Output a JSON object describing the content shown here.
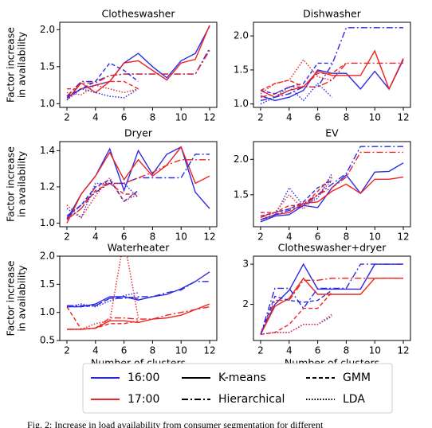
{
  "chart_data": [
    {
      "type": "line",
      "title": "Clotheswasher",
      "ylabel": [
        "Factor increase",
        "in availability"
      ],
      "x": [
        2,
        3,
        4,
        5,
        6,
        7,
        8,
        9,
        10,
        11,
        12
      ],
      "xlim": [
        1.5,
        12.5
      ],
      "xticks": [
        2,
        4,
        6,
        8,
        10,
        12
      ],
      "ylim": [
        0.95,
        2.1
      ],
      "yticks": [
        {
          "value": 1,
          "label": "1.0"
        },
        1.5,
        {
          "value": 2,
          "label": "2.0"
        }
      ],
      "series": [
        {
          "color": "#2a2ae6",
          "dash": "solid",
          "values": [
            1.08,
            1.2,
            1.25,
            1.3,
            1.55,
            1.68,
            1.5,
            1.35,
            1.58,
            1.68,
            2.05
          ]
        },
        {
          "color": "#ee2222",
          "dash": "solid",
          "values": [
            1.05,
            1.28,
            1.15,
            1.3,
            1.55,
            1.58,
            1.45,
            1.32,
            1.55,
            1.6,
            2.06
          ]
        },
        {
          "color": "#2a2ae6",
          "dash": "dashdot",
          "values": [
            1.1,
            1.3,
            1.3,
            1.38,
            1.4,
            1.4,
            1.4,
            1.4,
            1.4,
            1.4,
            1.75
          ]
        },
        {
          "color": "#ee2222",
          "dash": "dashdot",
          "values": [
            1.1,
            1.28,
            1.28,
            1.38,
            1.4,
            1.4,
            1.4,
            1.4,
            1.4,
            1.4,
            1.72
          ]
        },
        {
          "color": "#2a2ae6",
          "dash": "dashed",
          "values": [
            1.1,
            1.2,
            1.3,
            1.55,
            1.45,
            1.3,
            null,
            null,
            null,
            null,
            null
          ]
        },
        {
          "color": "#ee2222",
          "dash": "dashed",
          "values": [
            1.2,
            1.2,
            1.25,
            1.3,
            1.3,
            1.2,
            null,
            null,
            null,
            null,
            null
          ]
        },
        {
          "color": "#2a2ae6",
          "dash": "dotted",
          "values": [
            1.05,
            1.2,
            1.15,
            1.1,
            1.08,
            1.2,
            null,
            null,
            null,
            null,
            null
          ]
        },
        {
          "color": "#ee2222",
          "dash": "dotted",
          "values": [
            1.15,
            1.12,
            1.25,
            1.2,
            1.15,
            1.2,
            null,
            null,
            null,
            null,
            null
          ]
        }
      ]
    },
    {
      "type": "line",
      "title": "Dishwasher",
      "x": [
        2,
        3,
        4,
        5,
        6,
        7,
        8,
        9,
        10,
        11,
        12
      ],
      "xlim": [
        1.5,
        12.5
      ],
      "xticks": [
        2,
        4,
        6,
        8,
        10,
        12
      ],
      "ylim": [
        0.95,
        2.2
      ],
      "yticks": [
        {
          "value": 1,
          "label": "1.0"
        },
        1.5,
        {
          "value": 2,
          "label": "2.0"
        }
      ],
      "series": [
        {
          "color": "#2a2ae6",
          "dash": "solid",
          "values": [
            1.12,
            1.05,
            1.1,
            1.2,
            1.5,
            1.45,
            1.45,
            1.22,
            1.48,
            1.22,
            1.65
          ]
        },
        {
          "color": "#ee2222",
          "dash": "solid",
          "values": [
            1.2,
            1.1,
            1.2,
            1.25,
            1.48,
            1.42,
            1.42,
            1.42,
            1.78,
            1.22,
            1.67
          ]
        },
        {
          "color": "#2a2ae6",
          "dash": "dashdot",
          "values": [
            1.05,
            1.1,
            1.15,
            1.25,
            1.25,
            1.58,
            2.12,
            2.12,
            2.12,
            2.12,
            2.12
          ]
        },
        {
          "color": "#ee2222",
          "dash": "dashdot",
          "values": [
            1.1,
            1.15,
            1.25,
            1.25,
            1.25,
            1.35,
            1.6,
            1.6,
            1.6,
            1.6,
            1.6
          ]
        },
        {
          "color": "#2a2ae6",
          "dash": "dashed",
          "values": [
            1.2,
            1.15,
            1.25,
            1.3,
            1.6,
            1.6,
            null,
            null,
            null,
            null,
            null
          ]
        },
        {
          "color": "#ee2222",
          "dash": "dashed",
          "values": [
            1.2,
            1.3,
            1.35,
            1.25,
            1.45,
            1.45,
            1.6,
            null,
            null,
            null,
            null
          ]
        },
        {
          "color": "#2a2ae6",
          "dash": "dotted",
          "values": [
            1.0,
            1.1,
            1.25,
            1.05,
            1.3,
            1.1,
            null,
            null,
            null,
            null,
            null
          ]
        },
        {
          "color": "#ee2222",
          "dash": "dotted",
          "values": [
            1.15,
            1.3,
            1.35,
            1.65,
            1.4,
            1.35,
            null,
            null,
            null,
            null,
            null
          ]
        }
      ]
    },
    {
      "type": "line",
      "title": "Dryer",
      "ylabel": [
        "Factor increase",
        "in availability"
      ],
      "x": [
        2,
        3,
        4,
        5,
        6,
        7,
        8,
        9,
        10,
        11,
        12
      ],
      "xlim": [
        1.5,
        12.5
      ],
      "xticks": [
        2,
        4,
        6,
        8,
        10,
        12
      ],
      "ylim": [
        0.98,
        1.45
      ],
      "yticks": [
        {
          "value": 1,
          "label": "1.0"
        },
        1.2,
        1.4
      ],
      "series": [
        {
          "color": "#2a2ae6",
          "dash": "solid",
          "values": [
            1.02,
            1.16,
            1.26,
            1.41,
            1.18,
            1.4,
            1.27,
            1.38,
            1.42,
            1.17,
            1.08
          ]
        },
        {
          "color": "#ee2222",
          "dash": "solid",
          "values": [
            1.0,
            1.16,
            1.26,
            1.39,
            1.24,
            1.35,
            1.26,
            1.32,
            1.42,
            1.22,
            1.26
          ]
        },
        {
          "color": "#2a2ae6",
          "dash": "dashdot",
          "values": [
            1.03,
            1.1,
            1.17,
            1.22,
            1.22,
            1.25,
            1.25,
            1.25,
            1.25,
            1.38,
            1.38
          ]
        },
        {
          "color": "#ee2222",
          "dash": "dashdot",
          "values": [
            1.02,
            1.08,
            1.2,
            1.22,
            1.22,
            1.25,
            1.28,
            1.32,
            1.35,
            1.35,
            1.35
          ]
        },
        {
          "color": "#2a2ae6",
          "dash": "dashed",
          "values": [
            1.04,
            1.1,
            1.2,
            1.24,
            1.12,
            1.18,
            null,
            null,
            null,
            null,
            null
          ]
        },
        {
          "color": "#ee2222",
          "dash": "dashed",
          "values": [
            1.02,
            1.08,
            1.18,
            1.22,
            1.16,
            1.16,
            null,
            null,
            null,
            null,
            null
          ]
        },
        {
          "color": "#2a2ae6",
          "dash": "dotted",
          "values": [
            1.08,
            1.03,
            1.22,
            1.22,
            1.22,
            1.14,
            null,
            null,
            null,
            null,
            null
          ]
        },
        {
          "color": "#ee2222",
          "dash": "dotted",
          "values": [
            1.1,
            1.03,
            1.15,
            1.25,
            1.12,
            1.16,
            null,
            null,
            null,
            null,
            null
          ]
        }
      ]
    },
    {
      "type": "line",
      "title": "EV",
      "x": [
        2,
        3,
        4,
        5,
        6,
        7,
        8,
        9,
        10,
        11,
        12
      ],
      "xlim": [
        1.5,
        12.5
      ],
      "xticks": [
        2,
        4,
        6,
        8,
        10,
        12
      ],
      "ylim": [
        1.05,
        2.25
      ],
      "yticks": [
        1.5,
        {
          "value": 2,
          "label": "2.0"
        }
      ],
      "series": [
        {
          "color": "#2a2ae6",
          "dash": "solid",
          "values": [
            1.12,
            1.2,
            1.22,
            1.35,
            1.32,
            1.6,
            1.78,
            1.52,
            1.82,
            1.83,
            1.95
          ]
        },
        {
          "color": "#ee2222",
          "dash": "solid",
          "values": [
            1.15,
            1.22,
            1.25,
            1.38,
            1.4,
            1.55,
            1.65,
            1.52,
            1.72,
            1.72,
            1.75
          ]
        },
        {
          "color": "#2a2ae6",
          "dash": "dashdot",
          "values": [
            1.15,
            1.22,
            1.28,
            1.35,
            1.5,
            1.65,
            1.8,
            2.18,
            2.18,
            2.18,
            2.18
          ]
        },
        {
          "color": "#ee2222",
          "dash": "dashdot",
          "values": [
            1.18,
            1.25,
            1.3,
            1.38,
            1.5,
            1.6,
            1.75,
            2.1,
            2.1,
            2.1,
            2.1
          ]
        },
        {
          "color": "#2a2ae6",
          "dash": "dashed",
          "values": [
            1.2,
            1.25,
            1.3,
            1.4,
            1.6,
            1.7,
            null,
            null,
            null,
            null,
            null
          ]
        },
        {
          "color": "#ee2222",
          "dash": "dashed",
          "values": [
            1.25,
            1.25,
            1.35,
            1.35,
            1.55,
            1.75,
            null,
            null,
            null,
            null,
            null
          ]
        },
        {
          "color": "#2a2ae6",
          "dash": "dotted",
          "values": [
            1.15,
            1.2,
            1.6,
            1.35,
            1.45,
            1.8,
            null,
            null,
            null,
            null,
            null
          ]
        },
        {
          "color": "#ee2222",
          "dash": "dotted",
          "values": [
            1.2,
            1.25,
            1.5,
            1.3,
            1.5,
            1.7,
            null,
            null,
            null,
            null,
            null
          ]
        }
      ]
    },
    {
      "type": "line",
      "title": "Waterheater",
      "ylabel": [
        "Factor increase",
        "in availability"
      ],
      "xlabel": "Number of clusters",
      "x": [
        2,
        3,
        4,
        5,
        6,
        7,
        8,
        9,
        10,
        11,
        12
      ],
      "xlim": [
        1.5,
        12.5
      ],
      "xticks": [
        2,
        4,
        6,
        8,
        10,
        12
      ],
      "ylim": [
        0.5,
        2.0
      ],
      "yticks": [
        0.5,
        {
          "value": 1,
          "label": "1.0"
        },
        1.5,
        {
          "value": 2,
          "label": "2.0"
        }
      ],
      "series": [
        {
          "color": "#2a2ae6",
          "dash": "solid",
          "values": [
            1.1,
            1.1,
            1.15,
            1.28,
            1.28,
            1.22,
            1.28,
            1.32,
            1.42,
            1.55,
            1.72
          ]
        },
        {
          "color": "#ee2222",
          "dash": "solid",
          "values": [
            0.7,
            0.7,
            0.72,
            0.85,
            0.85,
            0.82,
            0.88,
            0.9,
            0.95,
            1.05,
            1.15
          ]
        },
        {
          "color": "#2a2ae6",
          "dash": "dashdot",
          "values": [
            1.12,
            1.12,
            1.12,
            1.25,
            1.25,
            1.28,
            1.28,
            1.35,
            1.4,
            1.55,
            1.55
          ]
        },
        {
          "color": "#ee2222",
          "dash": "dashdot",
          "values": [
            0.7,
            0.7,
            0.72,
            0.9,
            0.9,
            0.88,
            0.88,
            0.95,
            1.0,
            1.05,
            1.1
          ]
        },
        {
          "color": "#2a2ae6",
          "dash": "dashed",
          "values": [
            1.1,
            1.1,
            1.12,
            1.25,
            1.28,
            1.25,
            null,
            null,
            null,
            null,
            null
          ]
        },
        {
          "color": "#ee2222",
          "dash": "dashed",
          "values": [
            1.1,
            0.7,
            0.72,
            0.8,
            0.8,
            0.85,
            null,
            null,
            null,
            null,
            null
          ]
        },
        {
          "color": "#2a2ae6",
          "dash": "dotted",
          "values": [
            1.1,
            1.15,
            1.1,
            1.2,
            1.3,
            1.35,
            null,
            null,
            null,
            null,
            null
          ]
        },
        {
          "color": "#ee2222",
          "dash": "dotted",
          "values": [
            0.7,
            0.7,
            0.8,
            0.85,
            2.3,
            0.9,
            null,
            null,
            null,
            null,
            null
          ]
        }
      ]
    },
    {
      "type": "line",
      "title": "Clotheswasher+dryer",
      "xlabel": "Number of clusters",
      "x": [
        2,
        3,
        4,
        5,
        6,
        7,
        8,
        9,
        10,
        11,
        12
      ],
      "xlim": [
        1.5,
        12.5
      ],
      "xticks": [
        2,
        4,
        6,
        8,
        10,
        12
      ],
      "ylim": [
        1.1,
        3.2
      ],
      "yticks": [
        2,
        3
      ],
      "series": [
        {
          "color": "#2a2ae6",
          "dash": "solid",
          "values": [
            1.25,
            2.0,
            2.35,
            3.0,
            2.38,
            2.38,
            2.38,
            2.38,
            3.0,
            3.0,
            3.0
          ]
        },
        {
          "color": "#ee2222",
          "dash": "solid",
          "values": [
            1.25,
            1.95,
            2.15,
            2.65,
            2.25,
            2.25,
            2.25,
            2.25,
            2.65,
            2.65,
            2.65
          ]
        },
        {
          "color": "#2a2ae6",
          "dash": "dashdot",
          "values": [
            1.25,
            2.4,
            2.4,
            1.9,
            2.4,
            2.4,
            2.4,
            3.0,
            3.0,
            3.0,
            3.0
          ]
        },
        {
          "color": "#ee2222",
          "dash": "dashdot",
          "values": [
            1.25,
            2.1,
            2.1,
            2.6,
            2.6,
            2.65,
            2.65,
            2.65,
            2.65,
            2.65,
            2.65
          ]
        },
        {
          "color": "#2a2ae6",
          "dash": "dashed",
          "values": [
            1.25,
            2.2,
            2.1,
            2.05,
            2.1,
            2.35,
            null,
            null,
            null,
            null,
            null
          ]
        },
        {
          "color": "#ee2222",
          "dash": "dashed",
          "values": [
            1.25,
            1.3,
            1.5,
            1.9,
            1.9,
            2.3,
            null,
            null,
            null,
            null,
            null
          ]
        },
        {
          "color": "#2a2ae6",
          "dash": "dotted",
          "values": [
            1.25,
            1.3,
            1.3,
            1.5,
            1.5,
            1.7,
            null,
            null,
            null,
            null,
            null
          ]
        },
        {
          "color": "#ee2222",
          "dash": "dotted",
          "values": [
            1.25,
            1.3,
            1.3,
            1.5,
            1.5,
            1.75,
            null,
            null,
            null,
            null,
            null
          ]
        }
      ]
    }
  ],
  "legend": [
    {
      "label": "16:00",
      "color": "#2a2ae6",
      "dash": "solid"
    },
    {
      "label": "K-means",
      "color": "#000000",
      "dash": "solid"
    },
    {
      "label": "GMM",
      "color": "#000000",
      "dash": "dashed"
    },
    {
      "label": "17:00",
      "color": "#ee2222",
      "dash": "solid"
    },
    {
      "label": "Hierarchical",
      "color": "#000000",
      "dash": "dashdot"
    },
    {
      "label": "LDA",
      "color": "#000000",
      "dash": "dotted"
    }
  ],
  "caption": "Fig. 2: Increase in load availability from consumer segmentation for different"
}
